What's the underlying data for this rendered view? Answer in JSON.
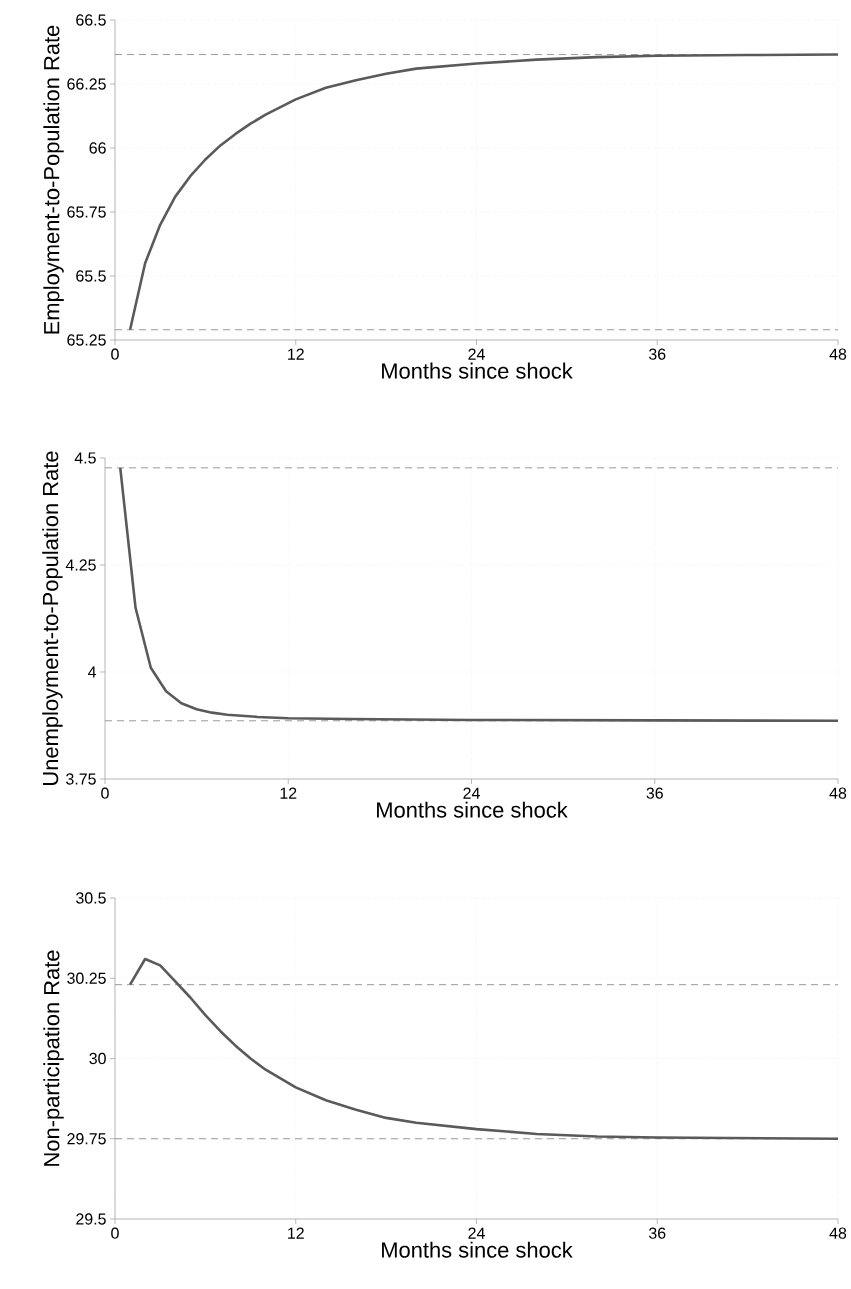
{
  "chart_data": [
    {
      "type": "line",
      "xlabel": "Months since shock",
      "ylabel": "Employment-to-Population Rate",
      "xlim": [
        0,
        48
      ],
      "xticks": [
        0,
        12,
        24,
        36,
        48
      ],
      "ylim": [
        65.25,
        66.5
      ],
      "yticks": [
        65.25,
        65.5,
        65.75,
        66,
        66.25,
        66.5
      ],
      "grid": true,
      "line_style": "solid",
      "series": [
        {
          "color": "#5a5a5a",
          "x": [
            1,
            2,
            3,
            4,
            5,
            6,
            7,
            8,
            9,
            10,
            12,
            14,
            16,
            18,
            20,
            24,
            28,
            32,
            36,
            42,
            48
          ],
          "values": [
            65.29,
            65.55,
            65.7,
            65.81,
            65.89,
            65.955,
            66.01,
            66.055,
            66.095,
            66.13,
            66.19,
            66.235,
            66.265,
            66.29,
            66.31,
            66.33,
            66.345,
            66.355,
            66.36,
            66.363,
            66.365
          ]
        }
      ],
      "ref_lines": [
        {
          "axis": "y",
          "value": 66.365,
          "color": "#999999",
          "line_style": "dashed"
        },
        {
          "axis": "y",
          "value": 65.29,
          "color": "#999999",
          "line_style": "dashed"
        }
      ]
    },
    {
      "type": "line",
      "xlabel": "Months since shock",
      "ylabel": "Unemployment-to-Population Rate",
      "xlim": [
        0,
        48
      ],
      "xticks": [
        0,
        12,
        24,
        36,
        48
      ],
      "ylim": [
        3.75,
        4.5
      ],
      "yticks": [
        3.75,
        4,
        4.25,
        4.5
      ],
      "grid": true,
      "line_style": "solid",
      "series": [
        {
          "color": "#5a5a5a",
          "x": [
            1,
            2,
            3,
            4,
            5,
            6,
            7,
            8,
            10,
            12,
            16,
            24,
            36,
            48
          ],
          "values": [
            4.477,
            4.15,
            4.01,
            3.955,
            3.927,
            3.913,
            3.905,
            3.9,
            3.895,
            3.892,
            3.89,
            3.888,
            3.887,
            3.886
          ]
        }
      ],
      "ref_lines": [
        {
          "axis": "y",
          "value": 4.477,
          "color": "#999999",
          "line_style": "dashed"
        },
        {
          "axis": "y",
          "value": 3.886,
          "color": "#999999",
          "line_style": "dashed"
        }
      ]
    },
    {
      "type": "line",
      "xlabel": "Months since shock",
      "ylabel": "Non-participation Rate",
      "xlim": [
        0,
        48
      ],
      "xticks": [
        0,
        12,
        24,
        36,
        48
      ],
      "ylim": [
        29.5,
        30.5
      ],
      "yticks": [
        29.5,
        29.75,
        30,
        30.25,
        30.5
      ],
      "grid": true,
      "line_style": "solid",
      "series": [
        {
          "color": "#5a5a5a",
          "x": [
            1,
            2,
            3,
            4,
            5,
            6,
            7,
            8,
            9,
            10,
            12,
            14,
            16,
            18,
            20,
            24,
            28,
            32,
            36,
            42,
            48
          ],
          "values": [
            30.23,
            30.31,
            30.29,
            30.24,
            30.19,
            30.135,
            30.085,
            30.04,
            30.0,
            29.965,
            29.91,
            29.87,
            29.84,
            29.815,
            29.8,
            29.78,
            29.765,
            29.757,
            29.754,
            29.752,
            29.75
          ]
        }
      ],
      "ref_lines": [
        {
          "axis": "y",
          "value": 30.23,
          "color": "#999999",
          "line_style": "dashed"
        },
        {
          "axis": "y",
          "value": 29.75,
          "color": "#999999",
          "line_style": "dashed"
        }
      ]
    }
  ]
}
